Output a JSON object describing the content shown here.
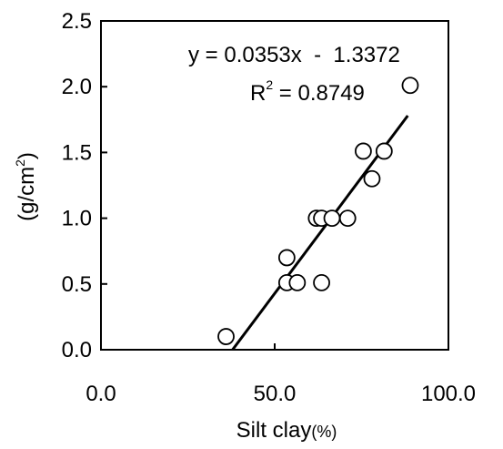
{
  "chart_data": {
    "type": "scatter",
    "title": "",
    "xlabel": "Silt clay",
    "xlabel_unit": "(%)",
    "ylabel_prefix": "(g/cm",
    "ylabel_sup": "2",
    "ylabel_suffix": ")",
    "xlim": [
      0,
      100
    ],
    "ylim": [
      0,
      2.5
    ],
    "x_ticks": [
      0,
      50,
      100
    ],
    "x_tick_labels": [
      "0.0",
      "50.0",
      "100.0"
    ],
    "y_ticks": [
      0,
      0.5,
      1.0,
      1.5,
      2.0,
      2.5
    ],
    "y_tick_labels": [
      "0.0",
      "0.5",
      "1.0",
      "1.5",
      "2.0",
      "2.5"
    ],
    "grid": false,
    "legend": "none",
    "points": [
      {
        "x": 36.0,
        "y": 0.1
      },
      {
        "x": 53.5,
        "y": 0.7
      },
      {
        "x": 53.5,
        "y": 0.51
      },
      {
        "x": 56.5,
        "y": 0.51
      },
      {
        "x": 63.5,
        "y": 0.51
      },
      {
        "x": 62.0,
        "y": 1.0
      },
      {
        "x": 63.5,
        "y": 1.0
      },
      {
        "x": 66.5,
        "y": 1.0
      },
      {
        "x": 71.0,
        "y": 1.0
      },
      {
        "x": 75.5,
        "y": 1.51
      },
      {
        "x": 78.0,
        "y": 1.3
      },
      {
        "x": 81.5,
        "y": 1.51
      },
      {
        "x": 89.0,
        "y": 2.01
      }
    ],
    "trendline": {
      "slope": 0.0353,
      "intercept": -1.3372,
      "x_start": 37.9,
      "x_end": 88.3
    },
    "equation_text": "y = 0.0353x  -  1.3372",
    "r2_prefix": "R",
    "r2_sup": "2",
    "r2_value": " = 0.8749",
    "marker_color": "#000000",
    "line_color": "#000000"
  }
}
